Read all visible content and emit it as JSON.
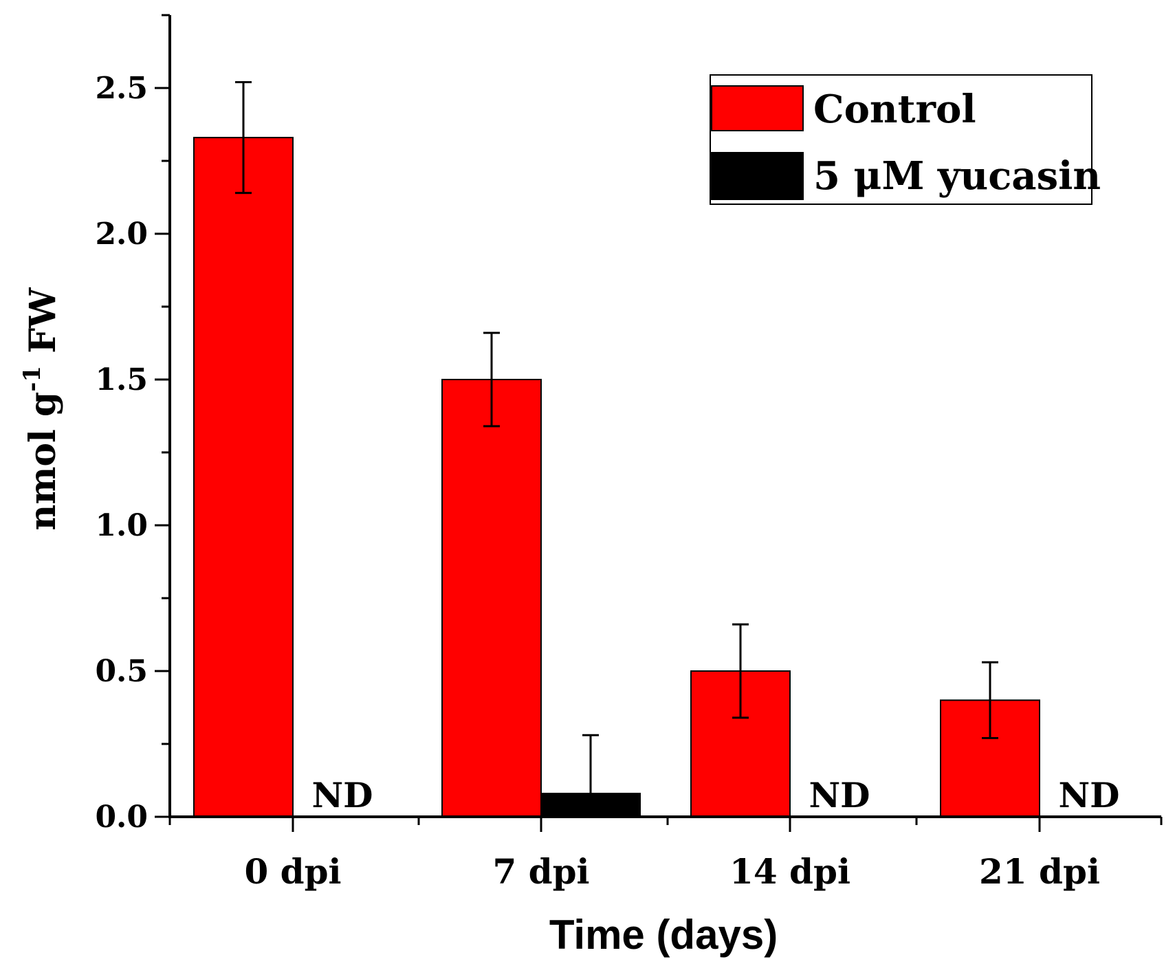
{
  "chart_data": {
    "type": "bar",
    "title": "",
    "xlabel": "Time (days)",
    "ylabel_main": "nmol g",
    "ylabel_sup": "-1",
    "ylabel_tail": " FW",
    "ylim": [
      0,
      2.75
    ],
    "yticks": [
      0.0,
      0.5,
      1.0,
      1.5,
      2.0,
      2.5
    ],
    "ytick_labels": [
      "0.0",
      "0.5",
      "1.0",
      "1.5",
      "2.0",
      "2.5"
    ],
    "categories": [
      "0 dpi",
      "7 dpi",
      "14 dpi",
      "21 dpi"
    ],
    "series": [
      {
        "name": "Control",
        "color": "#ff0000",
        "values": [
          2.33,
          1.5,
          0.5,
          0.4
        ],
        "errors": [
          0.19,
          0.16,
          0.16,
          0.13
        ],
        "labels": [
          null,
          null,
          null,
          null
        ]
      },
      {
        "name": "5 μM yucasin",
        "color": "#000000",
        "values": [
          null,
          0.08,
          null,
          null
        ],
        "errors": [
          null,
          0.2,
          null,
          null
        ],
        "labels": [
          "ND",
          null,
          "ND",
          "ND"
        ]
      }
    ],
    "legend_position": "top-right"
  }
}
